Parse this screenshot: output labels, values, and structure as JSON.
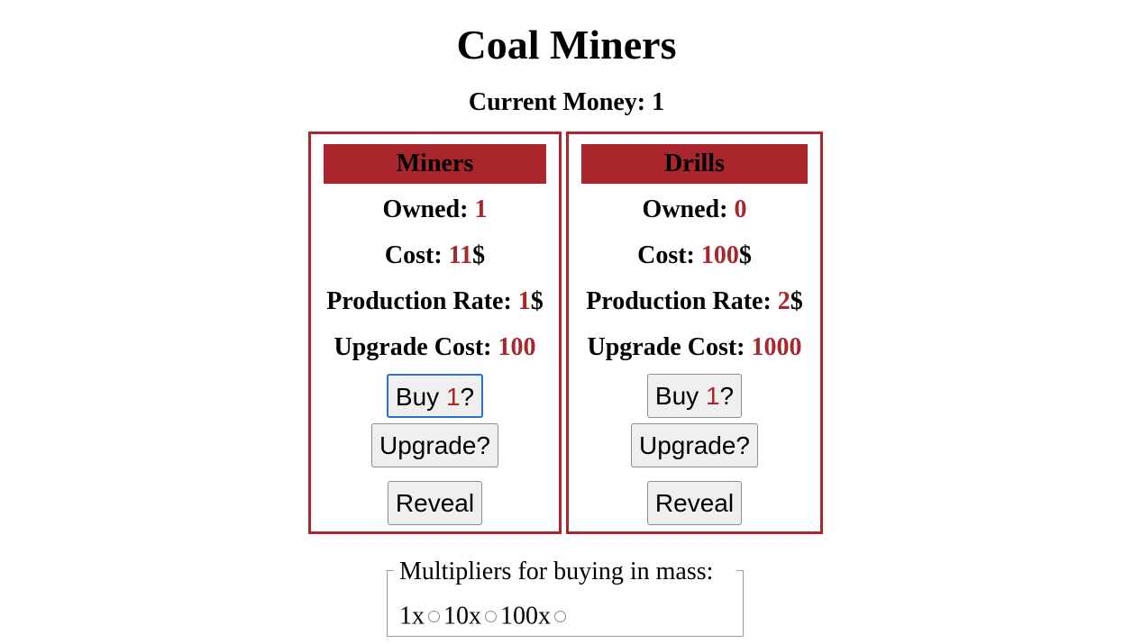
{
  "header": {
    "title": "Coal Miners",
    "money_label": "Current Money: ",
    "money_value": "1"
  },
  "labels": {
    "owned": "Owned: ",
    "cost": "Cost: ",
    "rate": "Production Rate: ",
    "upgrade_cost": "Upgrade Cost: ",
    "currency": "$",
    "buy_prefix": "Buy ",
    "buy_suffix": "?",
    "upgrade_button": "Upgrade?",
    "reveal_button": "Reveal"
  },
  "miners": {
    "title": "Miners",
    "owned": "1",
    "cost": "11",
    "rate": "1",
    "upgrade_cost": "100",
    "buy_qty": "1"
  },
  "drills": {
    "title": "Drills",
    "owned": "0",
    "cost": "100",
    "rate": "2",
    "upgrade_cost": "1000",
    "buy_qty": "1"
  },
  "multipliers": {
    "legend": "Multipliers for buying in mass:",
    "options": [
      "1x",
      "10x",
      "100x"
    ]
  },
  "colors": {
    "accent": "#a8262c",
    "focus": "#2a6fd2"
  }
}
